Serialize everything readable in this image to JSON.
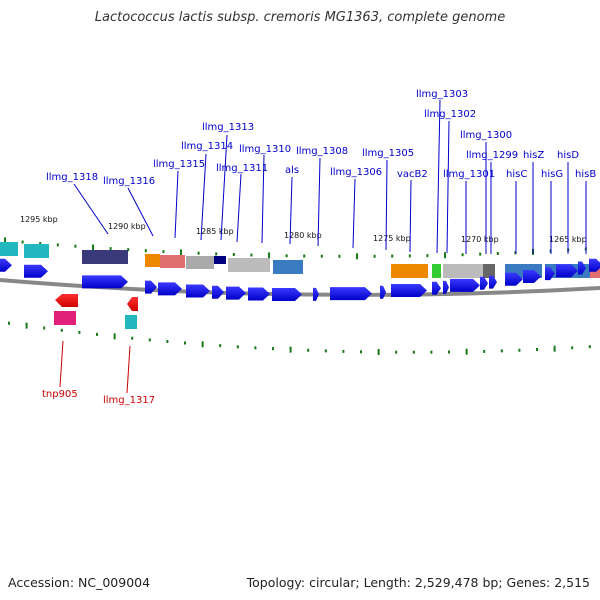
{
  "title": "Lactococcus lactis subsp. cremoris MG1363, complete genome",
  "footer": {
    "accession": "Accession: NC_009004",
    "summary": "Topology: circular; Length: 2,529,478 bp; Genes: 2,515"
  },
  "colors": {
    "backbone": "#888888",
    "gene_forward": "#0000ee",
    "label_blue": "#0000cc",
    "label_red": "#cc0000",
    "tick": "#1a7a1a"
  },
  "scale_labels": [
    "1295 kbp",
    "1290 kbp",
    "1285 kbp",
    "1280 kbp",
    "1275 kbp",
    "1270 kbp",
    "1265 kbp"
  ],
  "forward_genes": [
    {
      "label": "llmg_1318"
    },
    {
      "label": "llmg_1316"
    },
    {
      "label": "llmg_1315"
    },
    {
      "label": "llmg_1314"
    },
    {
      "label": "llmg_1313"
    },
    {
      "label": "llmg_1311"
    },
    {
      "label": "llmg_1310"
    },
    {
      "label": "als"
    },
    {
      "label": "llmg_1308"
    },
    {
      "label": "llmg_1306"
    },
    {
      "label": "llmg_1305"
    },
    {
      "label": "vacB2"
    },
    {
      "label": "llmg_1303"
    },
    {
      "label": "llmg_1302"
    },
    {
      "label": "llmg_1301"
    },
    {
      "label": "llmg_1300"
    },
    {
      "label": "llmg_1299"
    },
    {
      "label": "hisC"
    },
    {
      "label": "hisZ"
    },
    {
      "label": "hisG"
    },
    {
      "label": "hisD"
    },
    {
      "label": "hisB"
    }
  ],
  "reverse_genes": [
    {
      "label": "tnp905"
    },
    {
      "label": "llmg_1317"
    }
  ]
}
